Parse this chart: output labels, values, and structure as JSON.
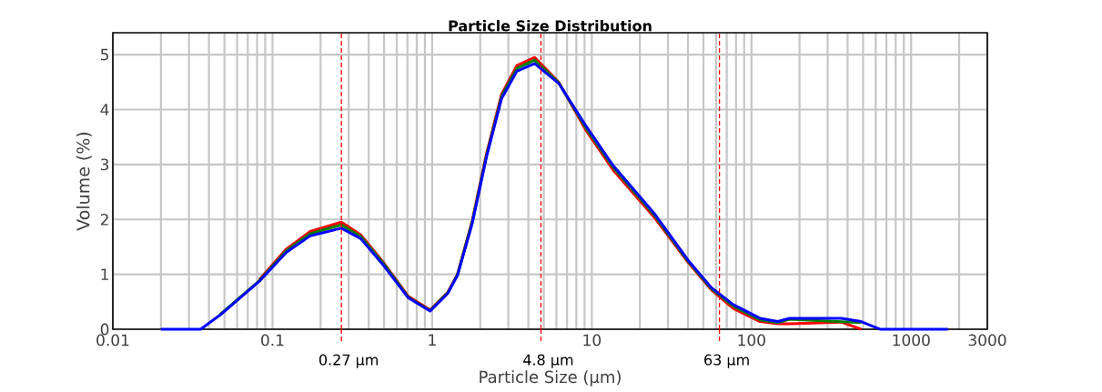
{
  "chart_data": {
    "type": "line",
    "title": "Particle Size Distribution",
    "xlabel": "Particle Size (µm)",
    "ylabel": "Volume (%)",
    "log": "x",
    "grid": true,
    "marker": "none",
    "line_style": "solid",
    "xlim": [
      0.01,
      3000
    ],
    "ylim": [
      0,
      5.4
    ],
    "xticks": [
      0.01,
      0.1,
      1,
      10,
      100,
      1000,
      3000
    ],
    "yticks": [
      0,
      1,
      2,
      3,
      4,
      5
    ],
    "x": [
      0.02,
      0.0355,
      0.047,
      0.0825,
      0.122,
      0.172,
      0.27,
      0.357,
      0.5,
      0.71,
      0.97,
      1.25,
      1.44,
      1.78,
      2.19,
      2.72,
      3.39,
      4.38,
      6.2,
      9.2,
      13.6,
      24.9,
      40,
      56,
      76.8,
      113,
      146,
      173,
      365,
      487,
      636,
      1700
    ],
    "series": [
      {
        "color": "#ff0000",
        "values": [
          null,
          null,
          null,
          0.9,
          1.46,
          1.78,
          1.95,
          1.72,
          1.2,
          0.6,
          0.35,
          0.67,
          1.0,
          1.97,
          3.2,
          4.28,
          4.8,
          4.95,
          4.5,
          3.62,
          2.9,
          2.02,
          1.22,
          0.72,
          0.38,
          0.14,
          0.1,
          0.1,
          0.13,
          0,
          null,
          null
        ]
      },
      {
        "color": "#008000",
        "values": [
          null,
          null,
          0.27,
          0.88,
          1.43,
          1.74,
          1.9,
          1.69,
          1.18,
          0.58,
          0.34,
          0.66,
          0.99,
          1.95,
          3.17,
          4.24,
          4.75,
          4.9,
          4.49,
          3.66,
          2.95,
          2.06,
          1.24,
          0.74,
          0.42,
          0.17,
          0.12,
          0.18,
          null,
          0.12,
          null,
          null
        ]
      },
      {
        "color": "#0000ff",
        "values": [
          0,
          0,
          0.26,
          0.87,
          1.4,
          1.7,
          1.84,
          1.65,
          1.15,
          0.57,
          0.33,
          0.65,
          0.98,
          1.92,
          3.14,
          4.2,
          4.7,
          4.84,
          4.48,
          3.7,
          2.98,
          2.09,
          1.26,
          0.76,
          0.45,
          0.2,
          0.14,
          0.2,
          0.2,
          0.14,
          0,
          0
        ]
      }
    ],
    "ref_lines": [
      {
        "axis": "x",
        "value": 0.27,
        "label": "0.27 µm",
        "color": "#ff0000",
        "line_style": "dashed"
      },
      {
        "axis": "x",
        "value": 4.8,
        "label": "4.8 µm",
        "color": "#ff0000",
        "line_style": "dashed"
      },
      {
        "axis": "x",
        "value": 63,
        "label": "63 µm",
        "color": "#ff0000",
        "line_style": "dashed"
      }
    ]
  }
}
